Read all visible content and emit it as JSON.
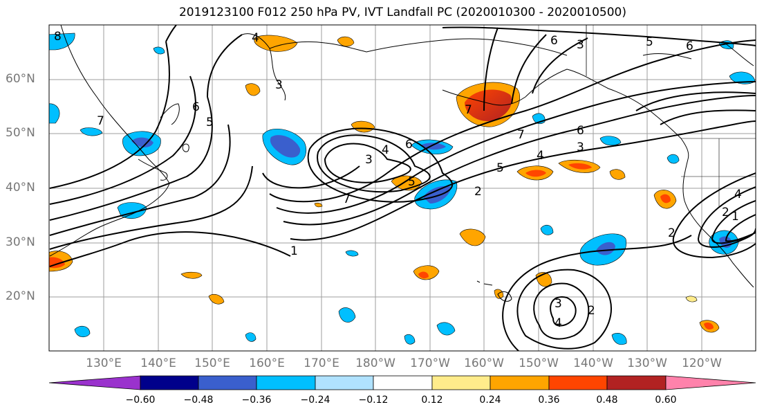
{
  "title": "2019123100 F012 250 hPa PV, IVT Landfall PC (2020010300 - 2020010500)",
  "lat_labels": [
    "60°N",
    "50°N",
    "40°N",
    "30°N",
    "20°N"
  ],
  "lon_labels": [
    "130°E",
    "140°E",
    "150°E",
    "160°E",
    "170°E",
    "180°W",
    "170°W",
    "160°W",
    "150°W",
    "140°W",
    "130°W",
    "120°W"
  ],
  "colorbar": {
    "colors": [
      "#9a32cd",
      "#00008b",
      "#3a5fcd",
      "#00bfff",
      "#b0e2ff",
      "#ffffff",
      "#ffec8b",
      "#ffa500",
      "#ff4500",
      "#b22222",
      "#ff82ab"
    ],
    "tick_labels": [
      "−0.60",
      "−0.48",
      "−0.36",
      "−0.24",
      "−0.12",
      "0.12",
      "0.24",
      "0.36",
      "0.48",
      "0.60"
    ]
  },
  "contour_labels": [
    "8",
    "7",
    "6",
    "5",
    "4",
    "3",
    "1",
    "3",
    "4",
    "6",
    "7",
    "5",
    "2",
    "7",
    "3",
    "5",
    "6",
    "4",
    "3",
    "6",
    "5",
    "7",
    "6",
    "2",
    "3",
    "4",
    "2",
    "2",
    "1",
    "4"
  ]
}
